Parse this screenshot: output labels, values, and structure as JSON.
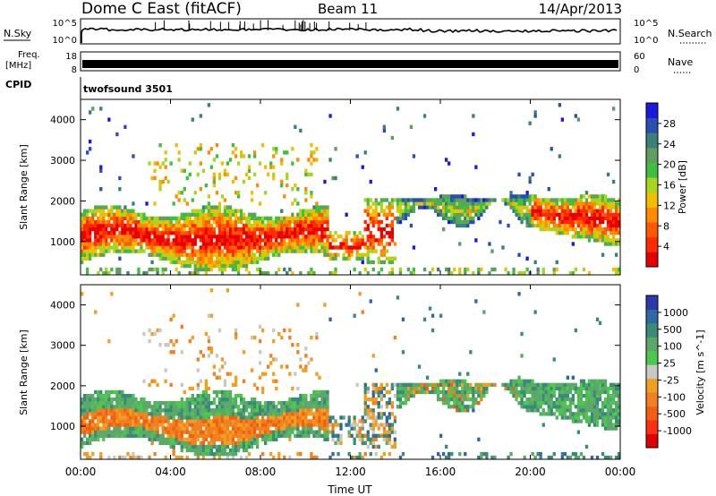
{
  "header": {
    "title": "Dome C East (fitACF)",
    "beam": "Beam 11",
    "date": "14/Apr/2013"
  },
  "nsky_panel": {
    "label": "N.Sky",
    "right_label": "N.Search",
    "left_ticks": [
      "10^5",
      "10^0"
    ],
    "right_ticks": [
      "10^5",
      "10^0"
    ]
  },
  "freq_panel": {
    "label_top": "Freq.",
    "label_bottom": "[MHz]",
    "right_label": "Nave",
    "left_ticks": [
      "18",
      "8"
    ],
    "right_ticks": [
      "60",
      "0"
    ]
  },
  "cpid": {
    "label": "CPID",
    "program": "twofsound 3501"
  },
  "power_panel": {
    "ylabel": "Slant Range [km]",
    "yticks": [
      "4000",
      "3000",
      "2000",
      "1000"
    ],
    "colorbar_label": "Power [dB]",
    "colorbar_ticks": [
      "28",
      "24",
      "20",
      "16",
      "12",
      "8",
      "4"
    ],
    "colorbar_colors": [
      "#1a1adc",
      "#2a4fb0",
      "#3a7f7a",
      "#5e9e5e",
      "#3fbf3f",
      "#a8d61e",
      "#f0c000",
      "#ff8c00",
      "#ff5a00",
      "#ff2a00",
      "#e80000"
    ]
  },
  "velocity_panel": {
    "ylabel": "Slant Range [km]",
    "yticks": [
      "4000",
      "3000",
      "2000",
      "1000"
    ],
    "colorbar_label": "Velocity [m s^-1]",
    "colorbar_ticks": [
      "1000",
      "500",
      "100",
      "25",
      "-25",
      "-100",
      "-500",
      "-1000"
    ],
    "colorbar_colors": [
      "#2a3aa8",
      "#2f68a0",
      "#3a8a78",
      "#5aa86a",
      "#4cc84c",
      "#c8c8c8",
      "#f0a020",
      "#f08020",
      "#f06010",
      "#ff3010",
      "#e00000"
    ]
  },
  "xaxis": {
    "label": "Time UT",
    "ticks": [
      "00:00",
      "04:00",
      "08:00",
      "12:00",
      "16:00",
      "20:00",
      "00:00"
    ]
  },
  "chart_data": [
    {
      "type": "line",
      "panel": "N.Sky / N.Search",
      "x": [
        "00:00",
        "04:00",
        "08:00",
        "12:00",
        "16:00",
        "20:00",
        "00:00"
      ],
      "series": [],
      "ylim": [
        "10^0",
        "10^5"
      ]
    },
    {
      "type": "line",
      "panel": "Freq. / Nave",
      "x": [
        "00:00",
        "04:00",
        "08:00",
        "12:00",
        "16:00",
        "20:00",
        "00:00"
      ],
      "series": [],
      "ylim": [
        8,
        18
      ]
    },
    {
      "type": "heatmap",
      "panel": "Power",
      "x": [
        "00:00",
        "04:00",
        "08:00",
        "12:00",
        "16:00",
        "20:00",
        "00:00"
      ],
      "ylabel": "Slant Range [km]",
      "colorbar": "Power [dB]",
      "clim": [
        0,
        32
      ],
      "xlim": [
        0,
        24
      ],
      "ylim": [
        180,
        4500
      ]
    },
    {
      "type": "heatmap",
      "panel": "Velocity",
      "x": [
        "00:00",
        "04:00",
        "08:00",
        "12:00",
        "16:00",
        "20:00",
        "00:00"
      ],
      "xlabel": "Time UT",
      "ylabel": "Slant Range [km]",
      "colorbar": "Velocity [m s^-1]",
      "clim": [
        -1000,
        1000
      ],
      "xlim": [
        0,
        24
      ],
      "ylim": [
        180,
        4500
      ]
    }
  ]
}
